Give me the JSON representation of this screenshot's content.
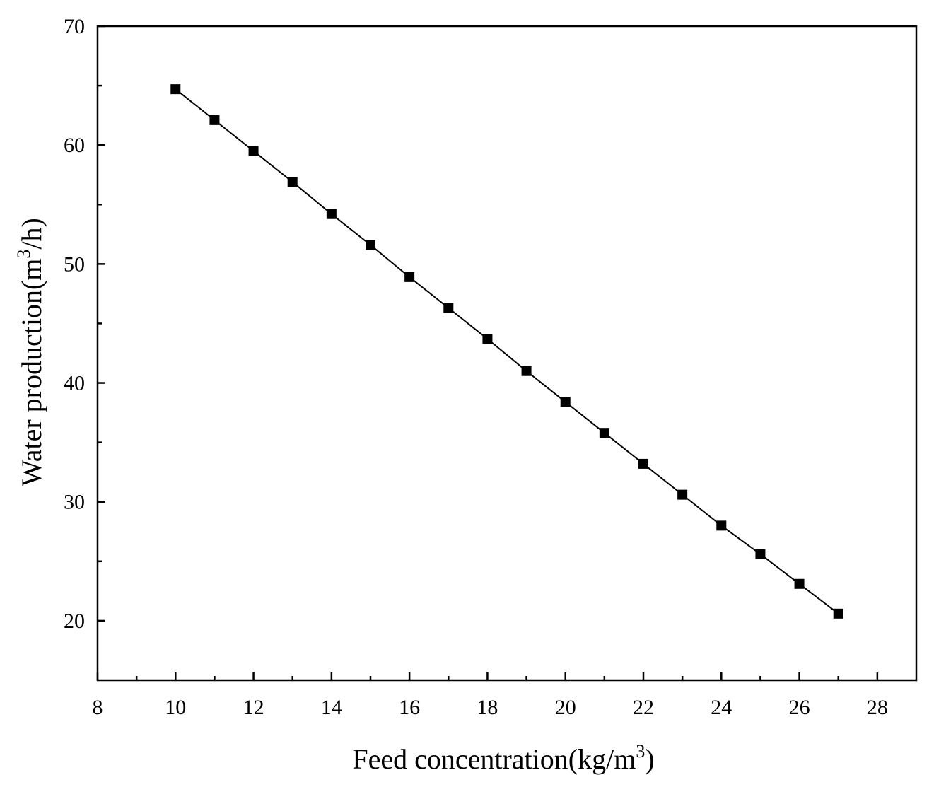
{
  "chart_data": {
    "type": "line",
    "title": "",
    "xlabel_main": "Feed concentration(kg/m",
    "xlabel_sup": "3",
    "xlabel_tail": ")",
    "ylabel_main": "Water production(m",
    "ylabel_sup": "3",
    "ylabel_tail": "/h)",
    "xlim": [
      8,
      29
    ],
    "ylim": [
      15,
      70
    ],
    "x_major_ticks": [
      8,
      10,
      12,
      14,
      16,
      18,
      20,
      22,
      24,
      26,
      28
    ],
    "x_tick_labels": [
      "8",
      "10",
      "12",
      "14",
      "16",
      "18",
      "20",
      "22",
      "24",
      "26",
      "28"
    ],
    "x_minor_ticks": [
      9,
      11,
      13,
      15,
      17,
      19,
      21,
      23,
      25,
      27
    ],
    "y_major_ticks": [
      20,
      30,
      40,
      50,
      60,
      70
    ],
    "y_tick_labels": [
      "20",
      "30",
      "40",
      "50",
      "60",
      "70"
    ],
    "y_minor_ticks": [
      25,
      35,
      45,
      55,
      65
    ],
    "marker": "square",
    "line_color": "#000000",
    "series": [
      {
        "name": "Water production",
        "x": [
          10,
          11,
          12,
          13,
          14,
          15,
          16,
          17,
          18,
          19,
          20,
          21,
          22,
          23,
          24,
          25,
          26,
          27
        ],
        "y": [
          64.7,
          62.1,
          59.5,
          56.9,
          54.2,
          51.6,
          48.9,
          46.3,
          43.7,
          41.0,
          38.4,
          35.8,
          33.2,
          30.6,
          28.0,
          25.6,
          23.1,
          20.6
        ]
      }
    ]
  }
}
